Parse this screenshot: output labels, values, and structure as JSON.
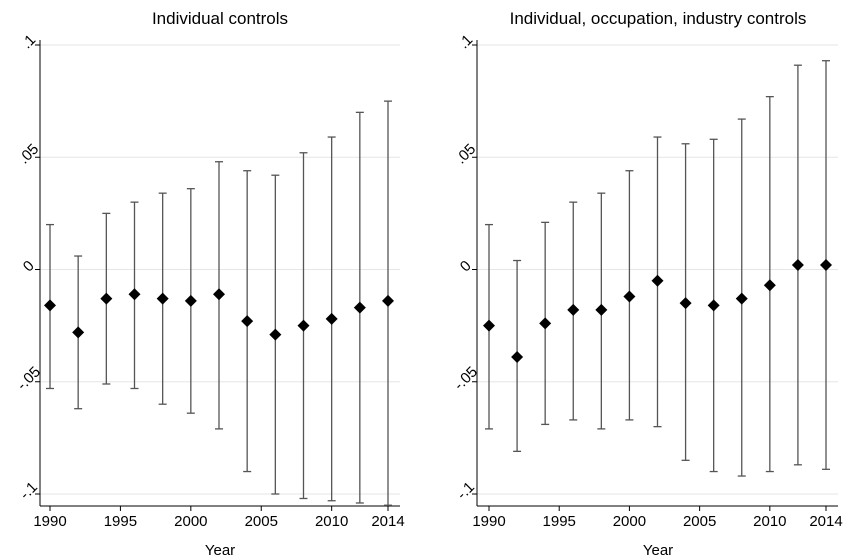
{
  "chart_data": [
    {
      "type": "errorbar",
      "title": "Individual controls",
      "xlabel": "Year",
      "ylabel": "",
      "xlim": [
        1990,
        2014
      ],
      "ylim": [
        -0.1,
        0.1
      ],
      "xticks": [
        1990,
        1995,
        2000,
        2005,
        2010,
        2014
      ],
      "yticks": [
        -0.1,
        -0.05,
        0,
        0.05,
        0.1
      ],
      "ytick_labels": [
        "-.1",
        "-.05",
        "0",
        ".05",
        ".1"
      ],
      "grid": true,
      "colors": {
        "marker": "#000000",
        "errorbar": "#555555",
        "grid": "#e6e6e6"
      },
      "points": [
        {
          "x": 1990,
          "y": -0.016,
          "lo": -0.053,
          "hi": 0.02
        },
        {
          "x": 1992,
          "y": -0.028,
          "lo": -0.062,
          "hi": 0.006
        },
        {
          "x": 1994,
          "y": -0.013,
          "lo": -0.051,
          "hi": 0.025
        },
        {
          "x": 1996,
          "y": -0.011,
          "lo": -0.053,
          "hi": 0.03
        },
        {
          "x": 1998,
          "y": -0.013,
          "lo": -0.06,
          "hi": 0.034
        },
        {
          "x": 2000,
          "y": -0.014,
          "lo": -0.064,
          "hi": 0.036
        },
        {
          "x": 2002,
          "y": -0.011,
          "lo": -0.071,
          "hi": 0.048
        },
        {
          "x": 2004,
          "y": -0.023,
          "lo": -0.09,
          "hi": 0.044
        },
        {
          "x": 2006,
          "y": -0.029,
          "lo": -0.1,
          "hi": 0.042
        },
        {
          "x": 2008,
          "y": -0.025,
          "lo": -0.102,
          "hi": 0.052
        },
        {
          "x": 2010,
          "y": -0.022,
          "lo": -0.103,
          "hi": 0.059
        },
        {
          "x": 2012,
          "y": -0.017,
          "lo": -0.104,
          "hi": 0.07
        },
        {
          "x": 2014,
          "y": -0.014,
          "lo": -0.105,
          "hi": 0.075
        }
      ]
    },
    {
      "type": "errorbar",
      "title": "Individual, occupation, industry controls",
      "xlabel": "Year",
      "ylabel": "",
      "xlim": [
        1990,
        2014
      ],
      "ylim": [
        -0.1,
        0.1
      ],
      "xticks": [
        1990,
        1995,
        2000,
        2005,
        2010,
        2014
      ],
      "yticks": [
        -0.1,
        -0.05,
        0,
        0.05,
        0.1
      ],
      "ytick_labels": [
        "-.1",
        "-.05",
        "0",
        ".05",
        ".1"
      ],
      "grid": true,
      "colors": {
        "marker": "#000000",
        "errorbar": "#555555",
        "grid": "#e6e6e6"
      },
      "points": [
        {
          "x": 1990,
          "y": -0.025,
          "lo": -0.071,
          "hi": 0.02
        },
        {
          "x": 1992,
          "y": -0.039,
          "lo": -0.081,
          "hi": 0.004
        },
        {
          "x": 1994,
          "y": -0.024,
          "lo": -0.069,
          "hi": 0.021
        },
        {
          "x": 1996,
          "y": -0.018,
          "lo": -0.067,
          "hi": 0.03
        },
        {
          "x": 1998,
          "y": -0.018,
          "lo": -0.071,
          "hi": 0.034
        },
        {
          "x": 2000,
          "y": -0.012,
          "lo": -0.067,
          "hi": 0.044
        },
        {
          "x": 2002,
          "y": -0.005,
          "lo": -0.07,
          "hi": 0.059
        },
        {
          "x": 2004,
          "y": -0.015,
          "lo": -0.085,
          "hi": 0.056
        },
        {
          "x": 2006,
          "y": -0.016,
          "lo": -0.09,
          "hi": 0.058
        },
        {
          "x": 2008,
          "y": -0.013,
          "lo": -0.092,
          "hi": 0.067
        },
        {
          "x": 2010,
          "y": -0.007,
          "lo": -0.09,
          "hi": 0.077
        },
        {
          "x": 2012,
          "y": 0.002,
          "lo": -0.087,
          "hi": 0.091
        },
        {
          "x": 2014,
          "y": 0.002,
          "lo": -0.089,
          "hi": 0.093
        }
      ]
    }
  ]
}
